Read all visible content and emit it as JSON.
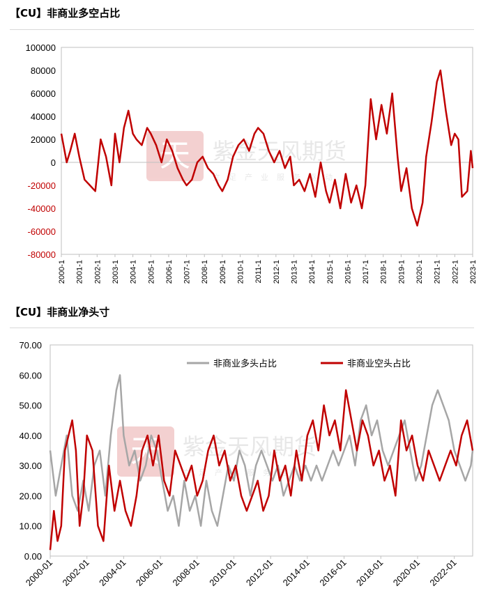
{
  "chart1": {
    "title": "【CU】非商业多空占比",
    "chart_data": {
      "type": "line",
      "title": "【CU】非商业多空占比",
      "ylim": [
        -80000,
        100000
      ],
      "yticks": [
        "100000",
        "80000",
        "60000",
        "40000",
        "20000",
        "0",
        "-20000",
        "-40000",
        "-60000",
        "-80000"
      ],
      "xlabels": [
        "2000-1",
        "2001-1",
        "2002-1",
        "2003-1",
        "2004-1",
        "2005-1",
        "2006-1",
        "2007-1",
        "2008-1",
        "2009-1",
        "2010-1",
        "2011-1",
        "2012-1",
        "2013-1",
        "2014-1",
        "2015-1",
        "2016-1",
        "2017-1",
        "2018-1",
        "2019-1",
        "2020-1",
        "2021-1",
        "2022-1",
        "2023-1"
      ],
      "xlim": [
        2000.0,
        2023.0
      ],
      "series": [
        {
          "name": "非商业多空占比",
          "color": "#c00000",
          "x": [
            2000.0,
            2000.3,
            2000.5,
            2000.75,
            2001.0,
            2001.3,
            2001.6,
            2001.9,
            2002.2,
            2002.5,
            2002.8,
            2003.0,
            2003.25,
            2003.5,
            2003.75,
            2004.0,
            2004.2,
            2004.5,
            2004.8,
            2005.0,
            2005.3,
            2005.6,
            2005.9,
            2006.2,
            2006.5,
            2006.8,
            2007.0,
            2007.3,
            2007.6,
            2007.9,
            2008.2,
            2008.5,
            2008.8,
            2009.0,
            2009.3,
            2009.6,
            2009.9,
            2010.2,
            2010.5,
            2010.8,
            2011.0,
            2011.3,
            2011.6,
            2011.9,
            2012.2,
            2012.5,
            2012.8,
            2013.0,
            2013.3,
            2013.6,
            2013.9,
            2014.2,
            2014.5,
            2014.8,
            2015.0,
            2015.3,
            2015.6,
            2015.9,
            2016.2,
            2016.5,
            2016.8,
            2017.0,
            2017.3,
            2017.6,
            2017.9,
            2018.2,
            2018.5,
            2018.8,
            2019.0,
            2019.3,
            2019.6,
            2019.9,
            2020.2,
            2020.4,
            2020.7,
            2021.0,
            2021.2,
            2021.5,
            2021.8,
            2022.0,
            2022.2,
            2022.4,
            2022.7,
            2022.9,
            2023.0
          ],
          "y": [
            25000,
            0,
            10000,
            25000,
            5000,
            -15000,
            -20000,
            -25000,
            20000,
            5000,
            -20000,
            25000,
            0,
            30000,
            45000,
            25000,
            20000,
            15000,
            30000,
            25000,
            15000,
            0,
            20000,
            10000,
            -5000,
            -15000,
            -20000,
            -15000,
            0,
            5000,
            -5000,
            -10000,
            -20000,
            -25000,
            -15000,
            5000,
            15000,
            20000,
            10000,
            25000,
            30000,
            25000,
            10000,
            0,
            10000,
            -5000,
            5000,
            -20000,
            -15000,
            -25000,
            -10000,
            -30000,
            0,
            -25000,
            -35000,
            -15000,
            -40000,
            -10000,
            -35000,
            -20000,
            -40000,
            -20000,
            55000,
            20000,
            50000,
            25000,
            60000,
            5000,
            -25000,
            -5000,
            -40000,
            -55000,
            -35000,
            5000,
            35000,
            70000,
            80000,
            45000,
            15000,
            25000,
            20000,
            -30000,
            -25000,
            10000,
            -5000
          ]
        }
      ]
    }
  },
  "chart2": {
    "title": "【CU】非商业净头寸",
    "chart_data": {
      "type": "line",
      "title": "【CU】非商业净头寸",
      "ylim": [
        0,
        70
      ],
      "yticks": [
        "70.00",
        "60.00",
        "50.00",
        "40.00",
        "30.00",
        "20.00",
        "10.00",
        "0.00"
      ],
      "xlabels": [
        "2000-01",
        "2002-01",
        "2004-01",
        "2006-01",
        "2008-01",
        "2010-01",
        "2012-01",
        "2014-01",
        "2016-01",
        "2018-01",
        "2020-01",
        "2022-01"
      ],
      "xlim": [
        2000.0,
        2023.0
      ],
      "legend": [
        "非商业多头占比",
        "非商业空头占比"
      ],
      "series": [
        {
          "name": "非商业多头占比",
          "color": "#a6a6a6",
          "x": [
            2000.0,
            2000.3,
            2000.6,
            2000.9,
            2001.2,
            2001.5,
            2001.8,
            2002.1,
            2002.4,
            2002.7,
            2003.0,
            2003.3,
            2003.6,
            2003.8,
            2004.0,
            2004.3,
            2004.6,
            2004.9,
            2005.2,
            2005.5,
            2005.8,
            2006.1,
            2006.4,
            2006.7,
            2007.0,
            2007.3,
            2007.6,
            2007.9,
            2008.2,
            2008.5,
            2008.8,
            2009.1,
            2009.4,
            2009.7,
            2010.0,
            2010.3,
            2010.6,
            2010.9,
            2011.2,
            2011.5,
            2011.8,
            2012.1,
            2012.4,
            2012.7,
            2013.0,
            2013.3,
            2013.6,
            2013.9,
            2014.2,
            2014.5,
            2014.8,
            2015.1,
            2015.4,
            2015.7,
            2016.0,
            2016.3,
            2016.6,
            2016.9,
            2017.2,
            2017.5,
            2017.8,
            2018.1,
            2018.4,
            2018.7,
            2019.0,
            2019.3,
            2019.6,
            2019.9,
            2020.2,
            2020.5,
            2020.8,
            2021.1,
            2021.4,
            2021.7,
            2022.0,
            2022.3,
            2022.6,
            2022.9,
            2023.0
          ],
          "y": [
            35,
            20,
            30,
            40,
            20,
            15,
            25,
            15,
            30,
            35,
            20,
            40,
            55,
            60,
            40,
            30,
            35,
            25,
            30,
            40,
            35,
            25,
            15,
            20,
            10,
            25,
            15,
            20,
            10,
            25,
            15,
            10,
            20,
            30,
            25,
            35,
            30,
            20,
            30,
            35,
            30,
            25,
            30,
            20,
            25,
            30,
            25,
            30,
            25,
            30,
            25,
            30,
            35,
            30,
            35,
            40,
            30,
            45,
            50,
            40,
            45,
            35,
            30,
            35,
            40,
            45,
            35,
            25,
            30,
            40,
            50,
            55,
            50,
            45,
            35,
            30,
            25,
            30,
            35
          ]
        },
        {
          "name": "非商业空头占比",
          "color": "#c00000",
          "x": [
            2000.0,
            2000.2,
            2000.4,
            2000.6,
            2000.8,
            2001.0,
            2001.2,
            2001.4,
            2001.6,
            2001.8,
            2002.0,
            2002.3,
            2002.6,
            2002.9,
            2003.2,
            2003.5,
            2003.8,
            2004.1,
            2004.4,
            2004.7,
            2005.0,
            2005.3,
            2005.6,
            2005.9,
            2006.2,
            2006.5,
            2006.8,
            2007.1,
            2007.4,
            2007.7,
            2008.0,
            2008.3,
            2008.6,
            2008.9,
            2009.2,
            2009.5,
            2009.8,
            2010.1,
            2010.4,
            2010.7,
            2011.0,
            2011.3,
            2011.6,
            2011.9,
            2012.2,
            2012.5,
            2012.8,
            2013.1,
            2013.4,
            2013.7,
            2014.0,
            2014.3,
            2014.6,
            2014.9,
            2015.2,
            2015.5,
            2015.8,
            2016.1,
            2016.4,
            2016.7,
            2017.0,
            2017.3,
            2017.6,
            2017.9,
            2018.2,
            2018.5,
            2018.8,
            2019.1,
            2019.4,
            2019.7,
            2020.0,
            2020.3,
            2020.6,
            2020.9,
            2021.2,
            2021.5,
            2021.8,
            2022.1,
            2022.4,
            2022.7,
            2023.0
          ],
          "y": [
            2,
            15,
            5,
            10,
            35,
            40,
            45,
            35,
            10,
            20,
            40,
            35,
            10,
            5,
            30,
            15,
            25,
            15,
            10,
            20,
            35,
            40,
            30,
            40,
            25,
            20,
            35,
            30,
            25,
            30,
            20,
            25,
            35,
            40,
            30,
            35,
            25,
            30,
            20,
            15,
            20,
            25,
            15,
            20,
            35,
            25,
            30,
            20,
            35,
            25,
            40,
            45,
            35,
            50,
            40,
            45,
            35,
            55,
            45,
            35,
            45,
            40,
            30,
            35,
            25,
            30,
            20,
            45,
            35,
            40,
            30,
            25,
            35,
            30,
            25,
            30,
            35,
            30,
            40,
            45,
            35
          ]
        }
      ]
    }
  },
  "watermark": {
    "text": "紫金天风期货",
    "sub": "立足产业服务驱动",
    "logo_char": "天"
  }
}
